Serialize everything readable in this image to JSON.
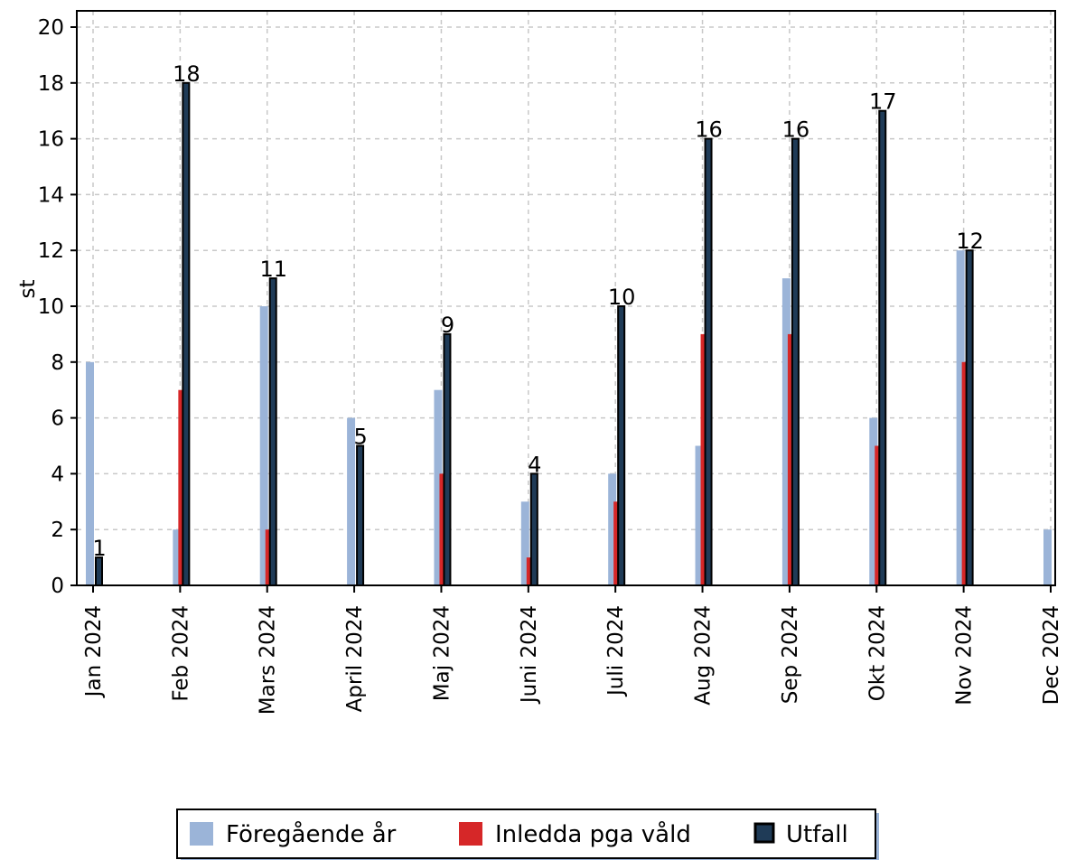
{
  "chart_data": {
    "type": "bar",
    "ylabel": "st",
    "xlabel": "",
    "ylim": [
      0,
      20
    ],
    "yticks": [
      0,
      2,
      4,
      6,
      8,
      10,
      12,
      14,
      16,
      18,
      20
    ],
    "grid": true,
    "legend_position": "bottom",
    "categories": [
      "Jan 2024",
      "Feb 2024",
      "Mars 2024",
      "April 2024",
      "Maj 2024",
      "Juni 2024",
      "Juli 2024",
      "Aug 2024",
      "Sep 2024",
      "Okt 2024",
      "Nov 2024",
      "Dec 2024"
    ],
    "series": [
      {
        "name": "Föregående år",
        "color": "#9bb4d8",
        "values": [
          8,
          2,
          10,
          6,
          7,
          3,
          4,
          5,
          11,
          6,
          12,
          2
        ]
      },
      {
        "name": "Inledda pga våld",
        "color": "#d62728",
        "values": [
          0,
          7,
          2,
          0,
          4,
          1,
          3,
          9,
          9,
          5,
          8,
          0
        ]
      },
      {
        "name": "Utfall",
        "color": "#1f3b57",
        "values": [
          1,
          18,
          11,
          5,
          9,
          4,
          10,
          16,
          16,
          17,
          12,
          null
        ]
      }
    ],
    "data_labels": [
      "1",
      "18",
      "11",
      "5",
      "9",
      "4",
      "10",
      "16",
      "16",
      "17",
      "12",
      ""
    ]
  }
}
